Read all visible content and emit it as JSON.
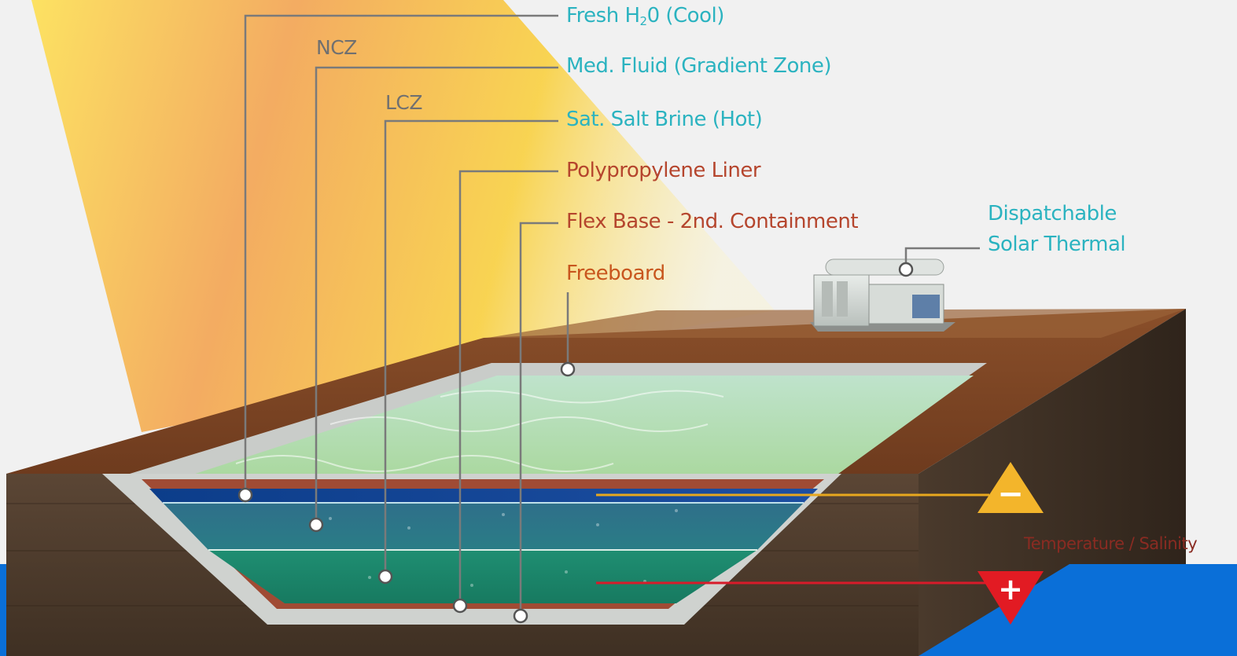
{
  "labels": {
    "fresh_h2o_a": "Fresh H",
    "fresh_h2o_sub": "2",
    "fresh_h2o_b": "0 (Cool)",
    "med_fluid": "Med. Fluid (Gradient Zone)",
    "sat_salt_brine": "Sat. Salt Brine (Hot)",
    "polypropylene_liner": "Polypropylene Liner",
    "flex_base": "Flex Base - 2nd. Containment",
    "freeboard": "Freeboard",
    "ncz": "NCZ",
    "lcz": "LCZ",
    "dispatchable_line1": "Dispatchable",
    "dispatchable_line2": "Solar Thermal",
    "temperature_salinity": "Temperature / Salinity"
  },
  "indicators": {
    "minus_symbol": "−",
    "plus_symbol": "+"
  },
  "colors": {
    "teal_label": "#2bb3c0",
    "rust_label": "#b5452d",
    "orange_label": "#c8561e",
    "minus_triangle": "#f3b52b",
    "plus_triangle": "#e21b23",
    "bottom_band": "#0a6fd8"
  }
}
